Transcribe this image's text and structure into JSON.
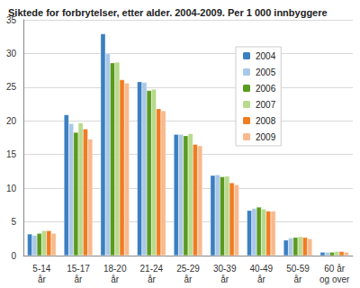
{
  "chart_data": {
    "type": "bar",
    "title": "Siktede for forbrytelser, etter alder. 2004-2009. Per 1 000 innbyggere",
    "categories": [
      "5-14\når",
      "15-17\når",
      "18-20\når",
      "21-24\når",
      "25-29\når",
      "30-39\når",
      "40-49\når",
      "50-59\når",
      "60 år\nog over"
    ],
    "series": [
      {
        "name": "2004",
        "color": "#3a7fc1",
        "values": [
          3.2,
          20.9,
          32.9,
          25.8,
          18.0,
          11.9,
          6.7,
          2.3,
          0.5
        ]
      },
      {
        "name": "2005",
        "color": "#a9c8e8",
        "values": [
          3.0,
          19.6,
          30.0,
          25.7,
          18.0,
          12.0,
          7.0,
          2.6,
          0.5
        ]
      },
      {
        "name": "2006",
        "color": "#5a9a1e",
        "values": [
          3.3,
          18.3,
          28.6,
          24.5,
          17.8,
          11.7,
          7.2,
          2.7,
          0.5
        ]
      },
      {
        "name": "2007",
        "color": "#b7da8c",
        "values": [
          3.7,
          19.7,
          28.7,
          24.7,
          18.1,
          11.8,
          6.9,
          2.8,
          0.6
        ]
      },
      {
        "name": "2008",
        "color": "#f07c22",
        "values": [
          3.7,
          18.8,
          26.1,
          21.8,
          16.5,
          10.8,
          6.6,
          2.7,
          0.6
        ]
      },
      {
        "name": "2009",
        "color": "#f8b98c",
        "values": [
          3.3,
          17.3,
          25.6,
          21.5,
          16.3,
          10.5,
          6.6,
          2.5,
          0.5
        ]
      }
    ],
    "ylim": [
      0,
      35
    ],
    "yticks": [
      0,
      5,
      10,
      15,
      20,
      25,
      30,
      35
    ],
    "grid": true,
    "legend": "right"
  }
}
